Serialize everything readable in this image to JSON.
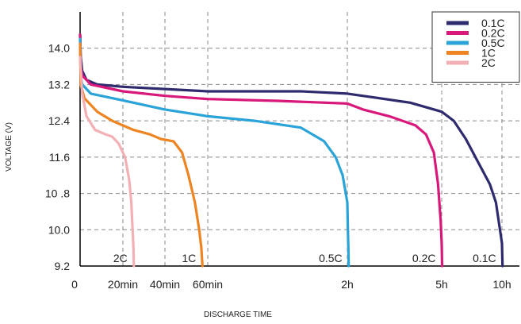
{
  "chart_data": {
    "type": "line",
    "title": "",
    "xlabel": "DISCHARGE TIME",
    "ylabel": "VOLTAGE (V)",
    "ylim": [
      9.2,
      14.8
    ],
    "x_scale": "nonlinear",
    "yticks": [
      {
        "value": 14.0,
        "label": "14.0"
      },
      {
        "value": 13.2,
        "label": "13.2"
      },
      {
        "value": 12.4,
        "label": "12.4"
      },
      {
        "value": 11.6,
        "label": "11.6"
      },
      {
        "value": 10.8,
        "label": "10 .8"
      },
      {
        "value": 10.0,
        "label": "10.0"
      },
      {
        "value": 9.2,
        "label": "9.2"
      }
    ],
    "xticks": [
      {
        "value": 0,
        "label": "0"
      },
      {
        "value": 20,
        "label": "20min"
      },
      {
        "value": 40,
        "label": "40min"
      },
      {
        "value": 60,
        "label": "60min"
      },
      {
        "value": 120,
        "label": "2h"
      },
      {
        "value": 300,
        "label": "5h"
      },
      {
        "value": 600,
        "label": "10h"
      }
    ],
    "grid": true,
    "legend_position": "top-right",
    "series": [
      {
        "name": "0.1C",
        "color": "#2e2a6e",
        "end_label": "0.1C",
        "points": [
          [
            0,
            14.3
          ],
          [
            0.3,
            13.8
          ],
          [
            1,
            13.5
          ],
          [
            3,
            13.3
          ],
          [
            8,
            13.2
          ],
          [
            20,
            13.15
          ],
          [
            40,
            13.1
          ],
          [
            60,
            13.05
          ],
          [
            100,
            13.05
          ],
          [
            120,
            13.0
          ],
          [
            180,
            12.9
          ],
          [
            240,
            12.8
          ],
          [
            300,
            12.6
          ],
          [
            360,
            12.4
          ],
          [
            420,
            12.0
          ],
          [
            480,
            11.5
          ],
          [
            540,
            11.0
          ],
          [
            570,
            10.6
          ],
          [
            590,
            10.0
          ],
          [
            600,
            9.7
          ],
          [
            603,
            9.2
          ]
        ]
      },
      {
        "name": "0.2C",
        "color": "#d8187a",
        "end_label": "0.2C",
        "points": [
          [
            0,
            14.3
          ],
          [
            0.3,
            13.6
          ],
          [
            1,
            13.4
          ],
          [
            5,
            13.2
          ],
          [
            20,
            13.05
          ],
          [
            40,
            12.95
          ],
          [
            60,
            12.88
          ],
          [
            90,
            12.84
          ],
          [
            120,
            12.78
          ],
          [
            150,
            12.65
          ],
          [
            200,
            12.5
          ],
          [
            250,
            12.3
          ],
          [
            270,
            12.1
          ],
          [
            285,
            11.7
          ],
          [
            293,
            11.0
          ],
          [
            298,
            10.2
          ],
          [
            300,
            9.7
          ],
          [
            302,
            9.2
          ]
        ]
      },
      {
        "name": "0.5C",
        "color": "#2aa3d8",
        "end_label": "0.5C",
        "points": [
          [
            0,
            14.2
          ],
          [
            0.3,
            13.4
          ],
          [
            1,
            13.2
          ],
          [
            5,
            13.0
          ],
          [
            20,
            12.85
          ],
          [
            40,
            12.65
          ],
          [
            60,
            12.5
          ],
          [
            80,
            12.4
          ],
          [
            100,
            12.25
          ],
          [
            110,
            11.95
          ],
          [
            115,
            11.6
          ],
          [
            118,
            11.2
          ],
          [
            120,
            10.6
          ],
          [
            121,
            10.0
          ],
          [
            122,
            9.6
          ],
          [
            122.5,
            9.2
          ]
        ]
      },
      {
        "name": "1C",
        "color": "#ee8522",
        "end_label": "1C",
        "points": [
          [
            0,
            14.1
          ],
          [
            0.3,
            13.2
          ],
          [
            2,
            12.9
          ],
          [
            8,
            12.6
          ],
          [
            15,
            12.4
          ],
          [
            25,
            12.2
          ],
          [
            33,
            12.1
          ],
          [
            38,
            12.0
          ],
          [
            44,
            11.95
          ],
          [
            48,
            11.7
          ],
          [
            51,
            11.2
          ],
          [
            54,
            10.6
          ],
          [
            56,
            10.0
          ],
          [
            57,
            9.6
          ],
          [
            57.5,
            9.2
          ]
        ]
      },
      {
        "name": "2C",
        "color": "#f2b0b5",
        "end_label": "2C",
        "points": [
          [
            0,
            13.8
          ],
          [
            1,
            13.0
          ],
          [
            3,
            12.5
          ],
          [
            7,
            12.2
          ],
          [
            12,
            12.1
          ],
          [
            15,
            12.05
          ],
          [
            18,
            11.9
          ],
          [
            21,
            11.6
          ],
          [
            23,
            11.1
          ],
          [
            24,
            10.6
          ],
          [
            24.6,
            10.0
          ],
          [
            25,
            9.6
          ],
          [
            25.2,
            9.2
          ]
        ]
      }
    ]
  }
}
